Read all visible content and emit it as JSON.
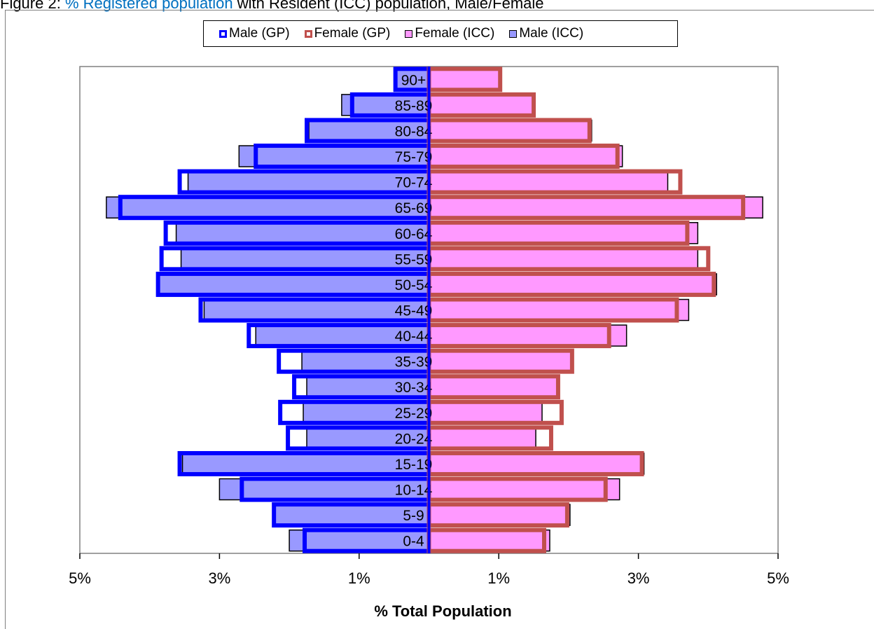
{
  "figure": {
    "prefix": "Figure 2: ",
    "link_text": "% Registered population",
    "suffix": " with Resident (ICC) population, Male/Female"
  },
  "chart_data": {
    "type": "bar",
    "orientation": "horizontal",
    "title": "",
    "xlabel": "% Total Population",
    "ylabel": "",
    "xlim": [
      -5,
      5
    ],
    "x_tick_labels": [
      "5%",
      "3%",
      "1%",
      "1%",
      "3%",
      "5%"
    ],
    "categories": [
      "0-4",
      "5-9",
      "10-14",
      "15-19",
      "20-24",
      "25-29",
      "30-34",
      "35-39",
      "40-44",
      "45-49",
      "50-54",
      "55-59",
      "60-64",
      "65-69",
      "70-74",
      "75-79",
      "80-84",
      "85-89",
      "90+"
    ],
    "series": [
      {
        "name": "Male (GP)",
        "color": "#0000ff",
        "style": "outline",
        "values": [
          -1.78,
          -2.22,
          -2.68,
          -3.57,
          -2.02,
          -2.13,
          -1.93,
          -2.15,
          -2.58,
          -3.27,
          -3.88,
          -3.83,
          -3.77,
          -4.42,
          -3.57,
          -2.48,
          -1.75,
          -1.1,
          -0.48
        ]
      },
      {
        "name": "Female (GP)",
        "color": "#c0504d",
        "style": "outline",
        "values": [
          1.65,
          1.98,
          2.53,
          3.05,
          1.75,
          1.9,
          1.85,
          2.05,
          2.58,
          3.55,
          4.08,
          4.0,
          3.7,
          4.5,
          3.6,
          2.7,
          2.3,
          1.5,
          1.02
        ]
      },
      {
        "name": "Female (ICC)",
        "color": "#ff99ff",
        "style": "fill",
        "values": [
          1.73,
          2.02,
          2.73,
          3.08,
          1.53,
          1.62,
          1.83,
          2.05,
          2.83,
          3.72,
          4.12,
          3.85,
          3.85,
          4.78,
          3.42,
          2.77,
          2.33,
          1.5,
          1.02
        ]
      },
      {
        "name": "Male (ICC)",
        "color": "#9999ff",
        "style": "fill",
        "values": [
          -2.0,
          -2.2,
          -3.0,
          -3.53,
          -1.75,
          -1.8,
          -1.75,
          -1.82,
          -2.48,
          -3.22,
          -3.88,
          -3.55,
          -3.62,
          -4.62,
          -3.45,
          -2.72,
          -1.72,
          -1.25,
          -0.48
        ]
      }
    ],
    "grid": false,
    "legend_position": "top"
  }
}
